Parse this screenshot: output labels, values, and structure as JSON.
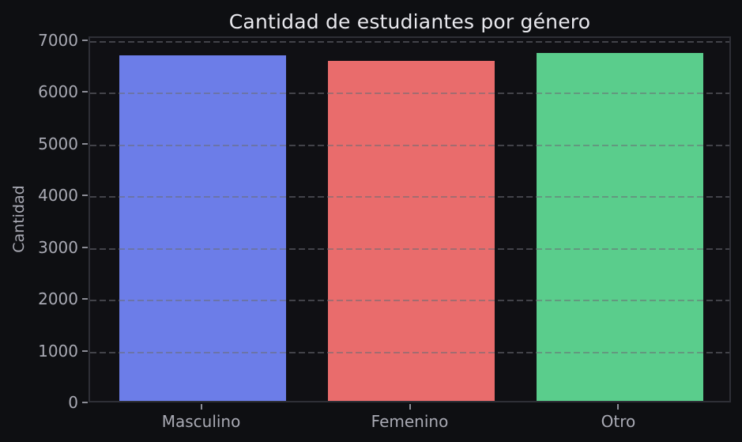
{
  "chart_data": {
    "type": "bar",
    "title": "Cantidad de estudiantes por género",
    "xlabel": "",
    "ylabel": "Cantidad",
    "categories": [
      "Masculino",
      "Femenino",
      "Otro"
    ],
    "values": [
      6680,
      6570,
      6720
    ],
    "bar_colors": [
      "#6C7DE8",
      "#E96C6C",
      "#5ACD8C"
    ],
    "ylim": [
      0,
      7075
    ],
    "yticks": [
      0,
      1000,
      2000,
      3000,
      4000,
      5000,
      6000,
      7000
    ],
    "xlim": [
      -0.54,
      2.54
    ],
    "bar_width_units": 0.8,
    "grid": "horizontal-dashed",
    "legend": "none",
    "theme": {
      "figure_background": "#0E0F12",
      "plot_background": "#101014",
      "spine_color": "#2E2F36",
      "grid_color": "#6A6C74",
      "tick_color": "#8C8D96",
      "tick_label_color": "#A9AAB4",
      "title_color": "#E9E9EE"
    }
  }
}
